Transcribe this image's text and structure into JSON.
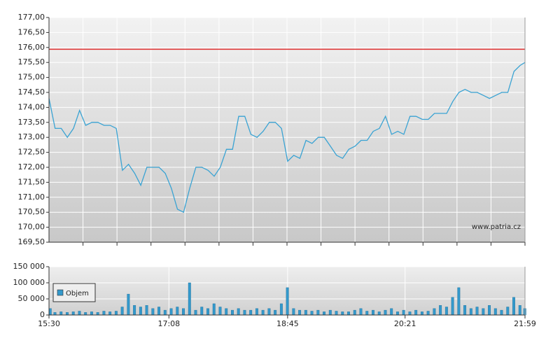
{
  "chart_data": [
    {
      "type": "line",
      "color": "#3aa3d3",
      "reference_line": 175.94,
      "reference_color": "#e03030",
      "watermark": "www.patria.cz",
      "x": [
        "15:30",
        "15:35",
        "15:40",
        "15:45",
        "15:50",
        "15:55",
        "16:00",
        "16:05",
        "16:10",
        "16:15",
        "16:20",
        "16:25",
        "16:30",
        "16:35",
        "16:40",
        "16:45",
        "16:50",
        "16:55",
        "17:00",
        "17:05",
        "17:10",
        "17:15",
        "17:20",
        "17:25",
        "17:30",
        "17:35",
        "17:40",
        "17:45",
        "17:50",
        "17:55",
        "18:00",
        "18:05",
        "18:10",
        "18:15",
        "18:20",
        "18:25",
        "18:30",
        "18:35",
        "18:40",
        "18:45",
        "18:50",
        "18:55",
        "19:00",
        "19:05",
        "19:10",
        "19:15",
        "19:20",
        "19:25",
        "19:30",
        "19:35",
        "19:40",
        "19:45",
        "19:50",
        "19:55",
        "20:00",
        "20:05",
        "20:10",
        "20:15",
        "20:20",
        "20:25",
        "20:30",
        "20:35",
        "20:40",
        "20:45",
        "20:50",
        "20:55",
        "21:00",
        "21:05",
        "21:10",
        "21:15",
        "21:20",
        "21:25",
        "21:30",
        "21:35",
        "21:40",
        "21:45",
        "21:50",
        "21:55",
        "21:59"
      ],
      "values": [
        174.3,
        173.3,
        173.3,
        173.0,
        173.3,
        173.9,
        173.4,
        173.5,
        173.5,
        173.4,
        173.4,
        173.3,
        171.9,
        172.1,
        171.8,
        171.4,
        172.0,
        172.0,
        172.0,
        171.8,
        171.3,
        170.6,
        170.5,
        171.3,
        172.0,
        172.0,
        171.9,
        171.7,
        172.0,
        172.6,
        172.6,
        173.7,
        173.7,
        173.1,
        173.0,
        173.2,
        173.5,
        173.5,
        173.3,
        172.2,
        172.4,
        172.3,
        172.9,
        172.8,
        173.0,
        173.0,
        172.7,
        172.4,
        172.3,
        172.6,
        172.7,
        172.9,
        172.9,
        173.2,
        173.3,
        173.7,
        173.1,
        173.2,
        173.1,
        173.7,
        173.7,
        173.6,
        173.6,
        173.8,
        173.8,
        173.8,
        174.2,
        174.5,
        174.6,
        174.5,
        174.5,
        174.4,
        174.3,
        174.4,
        174.5,
        174.5,
        175.2,
        175.4,
        175.5
      ],
      "xlim": [
        "15:30",
        "21:59"
      ],
      "ylim": [
        169.5,
        177
      ],
      "yticks": [
        {
          "value": 169.5,
          "label": "169,50"
        },
        {
          "value": 170,
          "label": "170,00"
        },
        {
          "value": 170.5,
          "label": "170,50"
        },
        {
          "value": 171,
          "label": "171,00"
        },
        {
          "value": 171.5,
          "label": "171,50"
        },
        {
          "value": 172,
          "label": "172,00"
        },
        {
          "value": 172.5,
          "label": "172,50"
        },
        {
          "value": 173,
          "label": "173,00"
        },
        {
          "value": 173.5,
          "label": "173,50"
        },
        {
          "value": 174,
          "label": "174,00"
        },
        {
          "value": 174.5,
          "label": "174,50"
        },
        {
          "value": 175,
          "label": "175,00"
        },
        {
          "value": 175.5,
          "label": "175,50"
        },
        {
          "value": 176,
          "label": "176,00"
        },
        {
          "value": 176.5,
          "label": "176,50"
        },
        {
          "value": 177,
          "label": "177,00"
        }
      ],
      "grid": true
    },
    {
      "type": "bar",
      "legend": "upper-left",
      "x": [
        "15:30",
        "15:35",
        "15:40",
        "15:45",
        "15:50",
        "15:55",
        "16:00",
        "16:05",
        "16:10",
        "16:15",
        "16:20",
        "16:25",
        "16:30",
        "16:35",
        "16:40",
        "16:45",
        "16:50",
        "16:55",
        "17:00",
        "17:05",
        "17:10",
        "17:15",
        "17:20",
        "17:25",
        "17:30",
        "17:35",
        "17:40",
        "17:45",
        "17:50",
        "17:55",
        "18:00",
        "18:05",
        "18:10",
        "18:15",
        "18:20",
        "18:25",
        "18:30",
        "18:35",
        "18:40",
        "18:45",
        "18:50",
        "18:55",
        "19:00",
        "19:05",
        "19:10",
        "19:15",
        "19:20",
        "19:25",
        "19:30",
        "19:35",
        "19:40",
        "19:45",
        "19:50",
        "19:55",
        "20:00",
        "20:05",
        "20:10",
        "20:15",
        "20:20",
        "20:25",
        "20:30",
        "20:35",
        "20:40",
        "20:45",
        "20:50",
        "20:55",
        "21:00",
        "21:05",
        "21:10",
        "21:15",
        "21:20",
        "21:25",
        "21:30",
        "21:35",
        "21:40",
        "21:45",
        "21:50",
        "21:55",
        "21:59"
      ],
      "series": [
        {
          "name": "Objem",
          "color": "#3399cc",
          "values": [
            20000,
            8000,
            10000,
            8000,
            10000,
            12000,
            8000,
            10000,
            8000,
            12000,
            10000,
            12000,
            25000,
            65000,
            30000,
            25000,
            30000,
            20000,
            25000,
            15000,
            20000,
            25000,
            20000,
            100000,
            15000,
            25000,
            20000,
            35000,
            25000,
            20000,
            15000,
            20000,
            15000,
            15000,
            20000,
            15000,
            20000,
            15000,
            35000,
            85000,
            20000,
            15000,
            15000,
            12000,
            15000,
            10000,
            15000,
            12000,
            10000,
            10000,
            15000,
            20000,
            12000,
            15000,
            10000,
            15000,
            20000,
            10000,
            15000,
            10000,
            15000,
            10000,
            12000,
            20000,
            30000,
            25000,
            55000,
            85000,
            30000,
            20000,
            25000,
            20000,
            30000,
            20000,
            15000,
            25000,
            55000,
            30000,
            20000
          ]
        }
      ],
      "xlim": [
        "15:30",
        "21:59"
      ],
      "xticks": [
        "15:30",
        "17:08",
        "18:45",
        "20:21",
        "21:59"
      ],
      "ylim": [
        0,
        150000
      ],
      "yticks": [
        {
          "value": 0,
          "label": "0"
        },
        {
          "value": 50000,
          "label": "50 000"
        },
        {
          "value": 100000,
          "label": "100 000"
        },
        {
          "value": 150000,
          "label": "150 000"
        }
      ],
      "grid": true
    }
  ]
}
